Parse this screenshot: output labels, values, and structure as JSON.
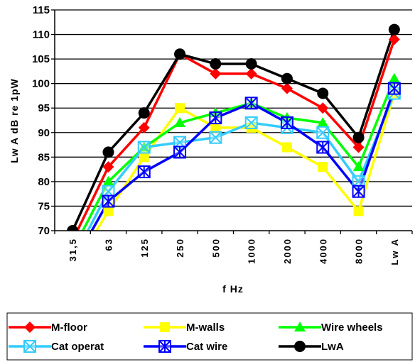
{
  "chart_data": {
    "type": "line",
    "xlabel": "f Hz",
    "ylabel": "Lw A dB re 1pW",
    "ylim": [
      70,
      115
    ],
    "yticks": [
      70,
      75,
      80,
      85,
      90,
      95,
      100,
      105,
      110,
      115
    ],
    "grid": "horizontal",
    "legend_position": "bottom",
    "categories": [
      "31,5",
      "63",
      "125",
      "250",
      "500",
      "1000",
      "2000",
      "4000",
      "8000",
      "Lw A"
    ],
    "series": [
      {
        "name": "M-floor",
        "color": "#ff0000",
        "marker": "diamond",
        "values": [
          68,
          83,
          91,
          106,
          102,
          102,
          99,
          95,
          87,
          109
        ]
      },
      {
        "name": "M-walls",
        "color": "#ffff00",
        "marker": "square",
        "values": [
          62,
          74,
          85,
          95,
          91,
          91,
          87,
          83,
          74,
          98
        ]
      },
      {
        "name": "Wire wheels",
        "color": "#00ff00",
        "marker": "triangle",
        "values": [
          66,
          80,
          87,
          92,
          94,
          96,
          93,
          92,
          83,
          101
        ]
      },
      {
        "name": "Cat operat",
        "color": "#33ccff",
        "marker": "square-x",
        "values": [
          64,
          78,
          87,
          88,
          89,
          92,
          91,
          90,
          80,
          98
        ]
      },
      {
        "name": "Cat wire",
        "color": "#0000ff",
        "marker": "square-star",
        "values": [
          63,
          76,
          82,
          86,
          93,
          96,
          92,
          87,
          78,
          99
        ]
      },
      {
        "name": "LwA",
        "color": "#000000",
        "marker": "circle",
        "values": [
          70,
          86,
          94,
          106,
          104,
          104,
          101,
          98,
          89,
          111
        ]
      }
    ]
  }
}
